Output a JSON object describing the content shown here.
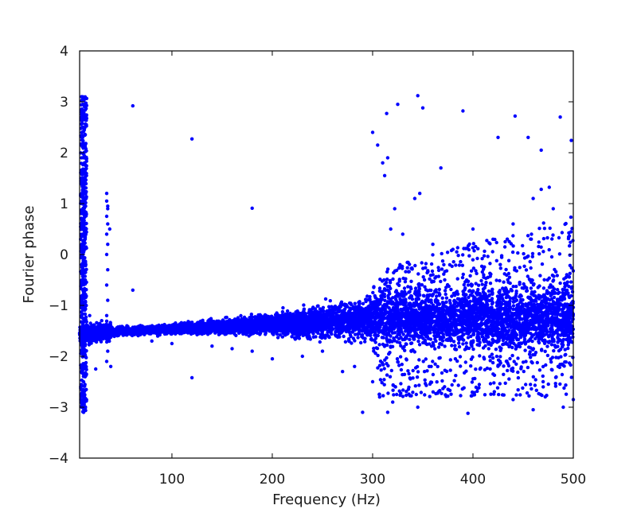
{
  "chart_data": {
    "type": "scatter",
    "title": "",
    "xlabel": "Frequency (Hz)",
    "ylabel": "Fourier phase",
    "xlim": [
      8,
      500
    ],
    "ylim": [
      -4,
      4
    ],
    "x_ticks": [
      100,
      200,
      300,
      400,
      500
    ],
    "x_tick_labels": [
      "100",
      "200",
      "300",
      "400",
      "500"
    ],
    "y_ticks": [
      -4,
      -3,
      -2,
      -1,
      0,
      1,
      2,
      3,
      4
    ],
    "y_tick_labels": [
      "−4",
      "−3",
      "−2",
      "−1",
      "0",
      "1",
      "2",
      "3",
      "4"
    ],
    "grid": false,
    "marker_color": "#0000ff",
    "series": [
      {
        "points": [
          [
            10,
            3.1
          ],
          [
            12,
            3.08
          ],
          [
            11,
            2.95
          ],
          [
            13,
            2.9
          ],
          [
            10,
            2.7
          ],
          [
            12,
            2.5
          ],
          [
            11,
            2.3
          ],
          [
            13,
            2.1
          ],
          [
            10,
            1.9
          ],
          [
            12,
            1.65
          ],
          [
            11,
            1.4
          ],
          [
            13,
            1.2
          ],
          [
            10,
            1.0
          ],
          [
            12,
            0.7
          ],
          [
            11,
            0.4
          ],
          [
            13,
            0.1
          ],
          [
            10,
            -0.2
          ],
          [
            12,
            -0.5
          ],
          [
            11,
            -0.8
          ],
          [
            13,
            -1.0
          ],
          [
            10,
            -1.2
          ],
          [
            12,
            -1.5
          ],
          [
            11,
            -1.8
          ],
          [
            13,
            -2.0
          ],
          [
            10,
            -2.2
          ],
          [
            12,
            -2.5
          ],
          [
            11,
            -2.7
          ],
          [
            13,
            -2.9
          ],
          [
            10,
            -3.0
          ],
          [
            12,
            -3.1
          ],
          [
            9,
            0.3
          ],
          [
            9,
            -2.6
          ],
          [
            14,
            -1.3
          ],
          [
            15,
            -1.6
          ],
          [
            16,
            -1.4
          ],
          [
            17,
            -1.5
          ],
          [
            18,
            -1.2
          ],
          [
            20,
            -1.7
          ],
          [
            22,
            -1.4
          ],
          [
            25,
            -1.5
          ],
          [
            28,
            -1.6
          ],
          [
            30,
            -1.3
          ],
          [
            33,
            -1.5
          ],
          [
            35,
            1.2
          ],
          [
            35,
            1.05
          ],
          [
            36,
            0.9
          ],
          [
            35,
            0.75
          ],
          [
            36,
            0.6
          ],
          [
            35,
            0.4
          ],
          [
            36,
            0.2
          ],
          [
            35,
            0.0
          ],
          [
            36,
            -0.3
          ],
          [
            35,
            -0.6
          ],
          [
            36,
            -0.9
          ],
          [
            35,
            -1.2
          ],
          [
            36,
            -1.9
          ],
          [
            35,
            -2.1
          ],
          [
            36,
            0.95
          ],
          [
            38,
            0.5
          ],
          [
            39,
            -2.2
          ],
          [
            24,
            -2.25
          ],
          [
            61,
            2.92
          ],
          [
            61,
            -0.7
          ],
          [
            120,
            2.27
          ],
          [
            120,
            -2.42
          ],
          [
            180,
            0.91
          ],
          [
            300,
            2.4
          ],
          [
            305,
            2.15
          ],
          [
            310,
            1.8
          ],
          [
            312,
            1.55
          ],
          [
            315,
            1.9
          ],
          [
            318,
            0.5
          ],
          [
            322,
            0.9
          ],
          [
            325,
            2.95
          ],
          [
            314,
            2.77
          ],
          [
            345,
            3.12
          ],
          [
            350,
            2.88
          ],
          [
            347,
            1.2
          ],
          [
            342,
            1.1
          ],
          [
            368,
            1.7
          ],
          [
            390,
            2.82
          ],
          [
            425,
            2.3
          ],
          [
            442,
            2.72
          ],
          [
            455,
            2.3
          ],
          [
            468,
            2.05
          ],
          [
            468,
            1.28
          ],
          [
            476,
            1.32
          ],
          [
            487,
            2.7
          ],
          [
            498,
            2.24
          ],
          [
            480,
            0.9
          ],
          [
            460,
            1.1
          ],
          [
            440,
            0.6
          ],
          [
            420,
            0.3
          ],
          [
            400,
            0.5
          ],
          [
            380,
            0.1
          ],
          [
            360,
            0.2
          ],
          [
            330,
            0.4
          ],
          [
            290,
            -3.1
          ],
          [
            315,
            -3.1
          ],
          [
            320,
            -2.9
          ],
          [
            345,
            -3.0
          ],
          [
            395,
            -3.12
          ],
          [
            440,
            -2.85
          ],
          [
            470,
            -2.6
          ],
          [
            490,
            -3.0
          ],
          [
            500,
            -2.85
          ],
          [
            460,
            -3.05
          ],
          [
            300,
            -2.5
          ],
          [
            307,
            -2.8
          ],
          [
            250,
            -1.9
          ],
          [
            270,
            -2.3
          ],
          [
            282,
            -2.2
          ],
          [
            200,
            -2.05
          ],
          [
            230,
            -2.0
          ],
          [
            180,
            -1.9
          ],
          [
            160,
            -1.85
          ],
          [
            140,
            -1.8
          ],
          [
            100,
            -1.75
          ],
          [
            80,
            -1.7
          ]
        ]
      }
    ]
  }
}
